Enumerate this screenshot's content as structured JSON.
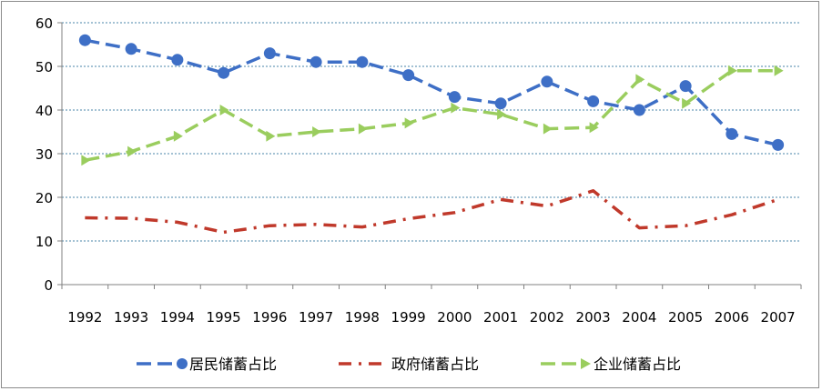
{
  "chart_data": {
    "type": "line",
    "title": "",
    "xlabel": "",
    "ylabel": "",
    "categories": [
      "1992",
      "1993",
      "1994",
      "1995",
      "1996",
      "1997",
      "1998",
      "1999",
      "2000",
      "2001",
      "2002",
      "2003",
      "2004",
      "2005",
      "2006",
      "2007"
    ],
    "ylim": [
      0,
      60
    ],
    "yticks": [
      "0",
      "10",
      "20",
      "30",
      "40",
      "50",
      "60"
    ],
    "grid": true,
    "legend_position": "bottom",
    "series": [
      {
        "name": "居民储蓄占比",
        "color": "#3e6fc6",
        "marker": "circle",
        "dash": "long-dash",
        "values": [
          56,
          54,
          51.5,
          48.5,
          53,
          51,
          51,
          48,
          43,
          41.5,
          46.5,
          42,
          40,
          45.5,
          34.5,
          32
        ]
      },
      {
        "name": "政府储蓄占比",
        "color": "#c0392b",
        "marker": "none",
        "dash": "dash-dot",
        "values": [
          15.3,
          15.2,
          14.3,
          12,
          13.5,
          13.8,
          13.2,
          15.1,
          16.5,
          19.5,
          18,
          21.5,
          13,
          13.5,
          16,
          19.5
        ]
      },
      {
        "name": "企业储蓄占比",
        "color": "#9acd5e",
        "marker": "arrow",
        "dash": "long-dash",
        "values": [
          28.5,
          30.5,
          34,
          40,
          34,
          35,
          35.7,
          37,
          40.5,
          39,
          35.7,
          36,
          47,
          41.5,
          49,
          49
        ]
      }
    ]
  }
}
